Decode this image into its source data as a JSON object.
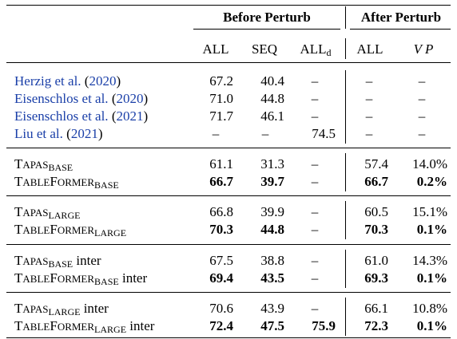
{
  "header": {
    "group_before": "Before Perturb",
    "group_after": "After Perturb",
    "col_all": "ALL",
    "col_seq": "SEQ",
    "col_alld_main": "ALL",
    "col_alld_sub": "d",
    "col_all2": "ALL",
    "col_vp": "V P"
  },
  "prior_rows": [
    {
      "name": "Herzig et al.",
      "year": "2020",
      "all": "67.2",
      "seq": "40.4",
      "alld": "–",
      "all2": "–",
      "vp": "–"
    },
    {
      "name": "Eisenschlos et al.",
      "year": "2020",
      "all": "71.0",
      "seq": "44.8",
      "alld": "–",
      "all2": "–",
      "vp": "–"
    },
    {
      "name": "Eisenschlos et al.",
      "year": "2021",
      "all": "71.7",
      "seq": "46.1",
      "alld": "–",
      "all2": "–",
      "vp": "–"
    },
    {
      "name": "Liu et al.",
      "year": "2021",
      "all": "–",
      "seq": "–",
      "alld": "74.5",
      "all2": "–",
      "vp": "–"
    }
  ],
  "groups": [
    {
      "rows": [
        {
          "model_T": "T",
          "model_rest": "APAS",
          "sub": "BASE",
          "suffix": "",
          "all": "61.1",
          "seq": "31.3",
          "alld": "–",
          "all2": "57.4",
          "vp": "14.0%",
          "bold": false
        },
        {
          "model_T": "T",
          "model_rest": "ABLE",
          "model_F": "F",
          "model_rest2": "ORMER",
          "sub": "BASE",
          "suffix": "",
          "all": "66.7",
          "seq": "39.7",
          "alld": "–",
          "all2": "66.7",
          "vp": "0.2%",
          "bold": true
        }
      ]
    },
    {
      "rows": [
        {
          "model_T": "T",
          "model_rest": "APAS",
          "sub": "LARGE",
          "suffix": "",
          "all": "66.8",
          "seq": "39.9",
          "alld": "–",
          "all2": "60.5",
          "vp": "15.1%",
          "bold": false
        },
        {
          "model_T": "T",
          "model_rest": "ABLE",
          "model_F": "F",
          "model_rest2": "ORMER",
          "sub": "LARGE",
          "suffix": "",
          "all": "70.3",
          "seq": "44.8",
          "alld": "–",
          "all2": "70.3",
          "vp": "0.1%",
          "bold": true
        }
      ]
    },
    {
      "rows": [
        {
          "model_T": "T",
          "model_rest": "APAS",
          "sub": "BASE",
          "suffix": " inter",
          "all": "67.5",
          "seq": "38.8",
          "alld": "–",
          "all2": "61.0",
          "vp": "14.3%",
          "bold": false
        },
        {
          "model_T": "T",
          "model_rest": "ABLE",
          "model_F": "F",
          "model_rest2": "ORMER",
          "sub": "BASE",
          "suffix": " inter",
          "all": "69.4",
          "seq": "43.5",
          "alld": "–",
          "all2": "69.3",
          "vp": "0.1%",
          "bold": true
        }
      ]
    },
    {
      "rows": [
        {
          "model_T": "T",
          "model_rest": "APAS",
          "sub": "LARGE",
          "suffix": " inter",
          "all": "70.6",
          "seq": "43.9",
          "alld": "–",
          "all2": "66.1",
          "vp": "10.8%",
          "bold": false
        },
        {
          "model_T": "T",
          "model_rest": "ABLE",
          "model_F": "F",
          "model_rest2": "ORMER",
          "sub": "LARGE",
          "suffix": " inter",
          "all": "72.4",
          "seq": "47.5",
          "alld": "75.9",
          "all2": "72.3",
          "vp": "0.1%",
          "bold": true
        }
      ]
    }
  ]
}
